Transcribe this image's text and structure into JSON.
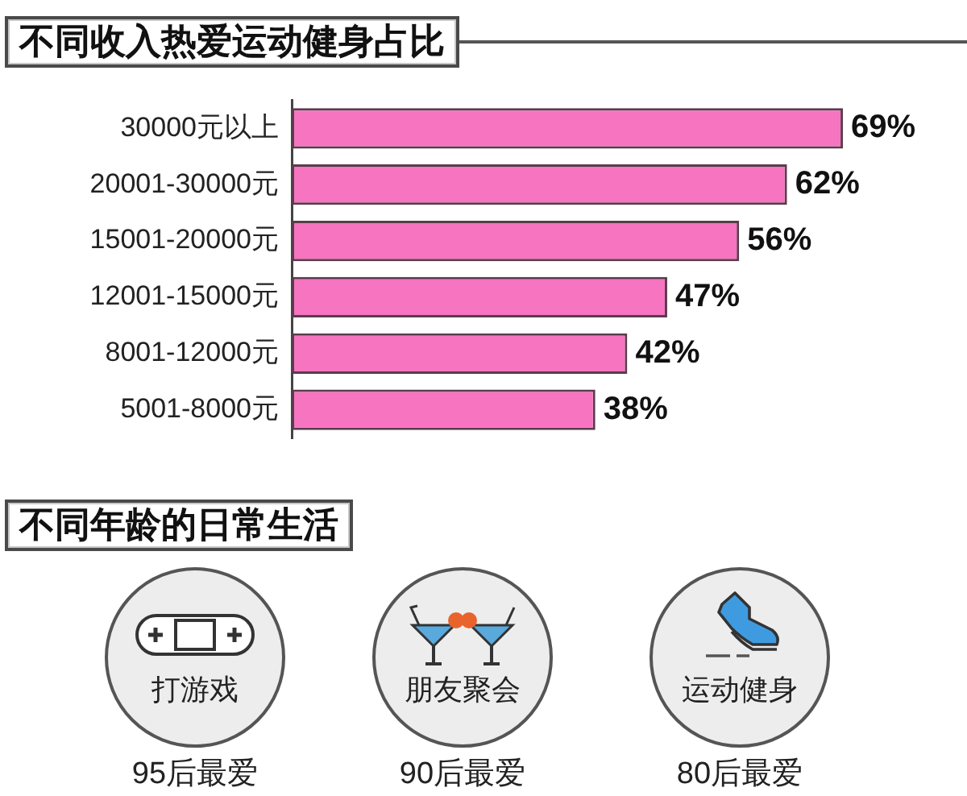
{
  "chart_data": [
    {
      "type": "bar",
      "title": "不同收入热爱运动健身占比",
      "orientation": "horizontal",
      "categories": [
        "30000元以上",
        "20001-30000元",
        "15001-20000元",
        "12001-15000元",
        "8001-12000元",
        "5001-8000元"
      ],
      "values": [
        69,
        62,
        56,
        47,
        42,
        38
      ],
      "value_labels": [
        "69%",
        "62%",
        "56%",
        "47%",
        "42%",
        "38%"
      ],
      "color": "#f674c0",
      "tick_labels": "y",
      "grid": false,
      "legend": false
    },
    {
      "type": "other",
      "title": "不同年龄的日常生活",
      "annotations": [
        "打游戏",
        "95后最爱",
        "朋友聚会",
        "90后最爱",
        "运动健身",
        "80后最爱"
      ]
    }
  ]
}
